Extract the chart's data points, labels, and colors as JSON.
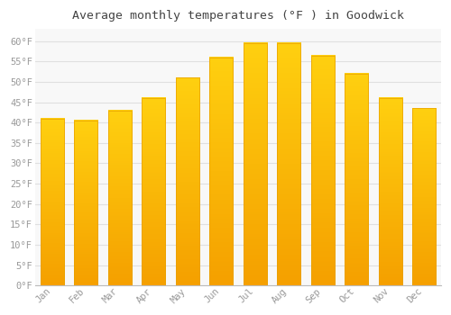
{
  "title": "Average monthly temperatures (°F ) in Goodwick",
  "months": [
    "Jan",
    "Feb",
    "Mar",
    "Apr",
    "May",
    "Jun",
    "Jul",
    "Aug",
    "Sep",
    "Oct",
    "Nov",
    "Dec"
  ],
  "values": [
    41,
    40.5,
    43,
    46,
    51,
    56,
    59.5,
    59.5,
    56.5,
    52,
    46,
    43.5
  ],
  "bar_color_top": "#FFC200",
  "bar_color_bottom": "#F5A800",
  "bar_edge_color": "#E8A000",
  "background_color": "#FFFFFF",
  "plot_bg_color": "#F8F8F8",
  "grid_color": "#E0E0E0",
  "tick_label_color": "#999999",
  "title_color": "#444444",
  "ylim": [
    0,
    63
  ],
  "yticks": [
    0,
    5,
    10,
    15,
    20,
    25,
    30,
    35,
    40,
    45,
    50,
    55,
    60
  ],
  "ylabel_suffix": "°F",
  "bar_width": 0.7
}
